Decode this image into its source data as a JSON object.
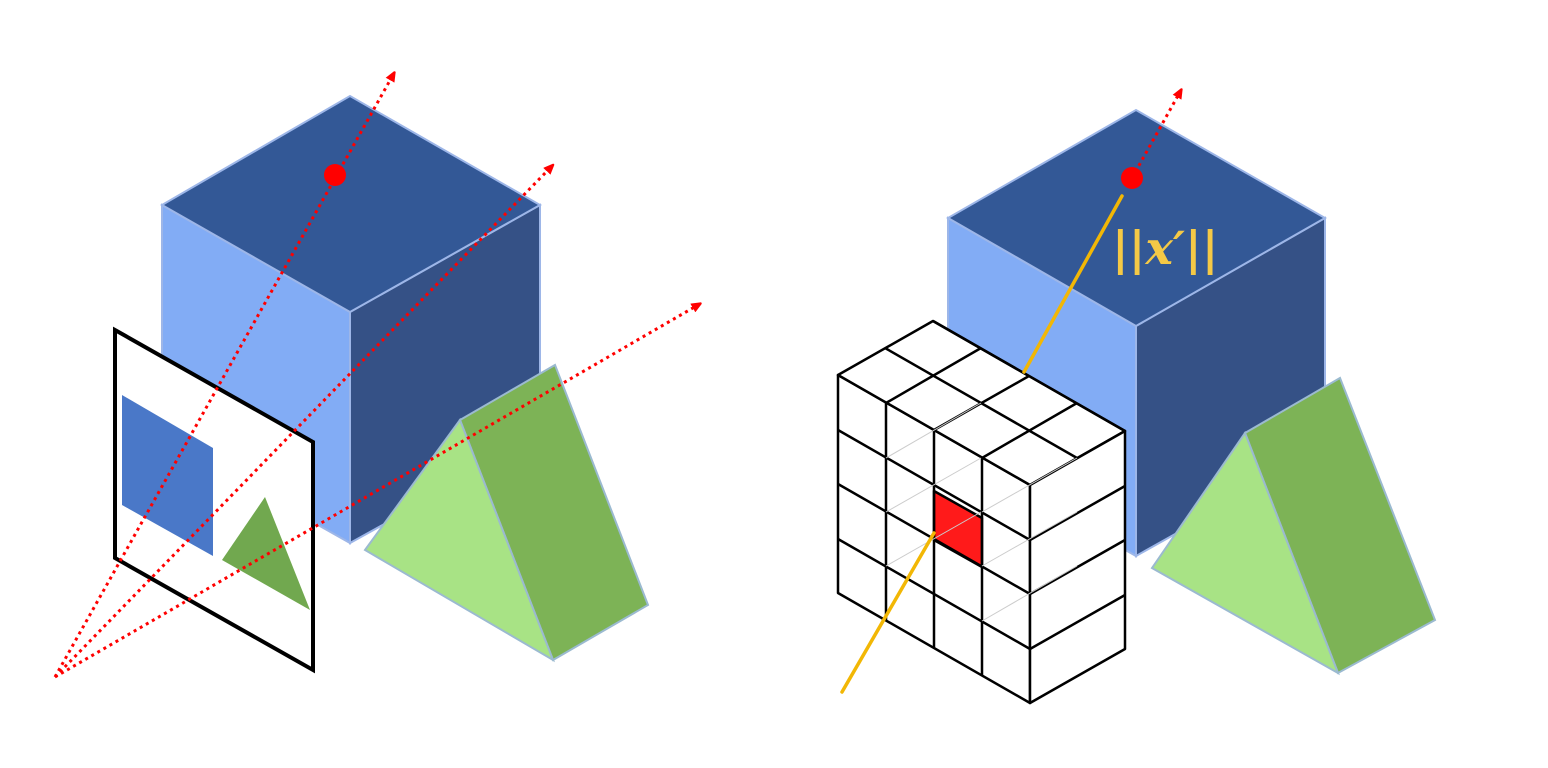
{
  "diagram": {
    "norm_label": "||x′||"
  },
  "colors": {
    "background": "#ffffff",
    "cube_top": "#335896",
    "cube_left": "#82acf5",
    "cube_right": "#355186",
    "cube_edge": "#9db6e8",
    "prism_left": "#a8e385",
    "prism_right": "#7db356",
    "prism_edge": "#9bbad0",
    "ray": "#ff0000",
    "ray_point": "#ff0000",
    "image_plane_frame": "#000000",
    "image_square": "#4a78c8",
    "image_triangle": "#71a84f",
    "voxel_edge": "#000000",
    "voxel_highlight": "#ff1a1a",
    "yellow_ray": "#f2b705",
    "norm_label": "#f5c946"
  }
}
